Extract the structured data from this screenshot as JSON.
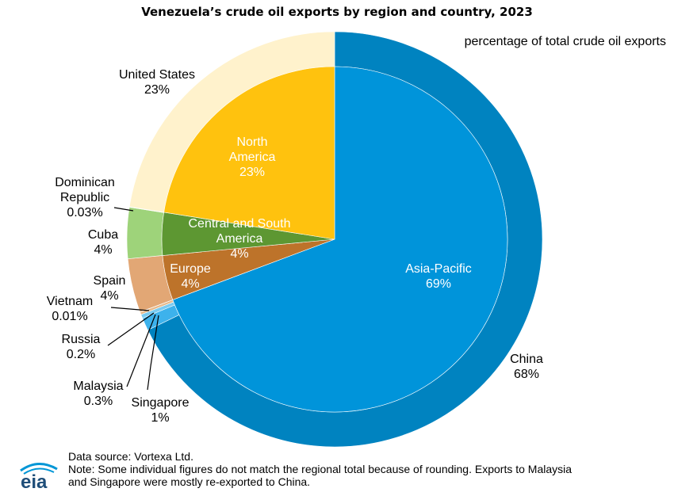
{
  "chart_data": {
    "type": "pie",
    "title": "Venezuela’s crude oil exports by region and country, 2023",
    "subtitle": "percentage of total crude oil exports",
    "inner_ring": {
      "slices": [
        {
          "label_lines": [
            "Asia-Pacific",
            "69%"
          ],
          "value": 69.3,
          "color": "#0094DA"
        },
        {
          "label_lines": [
            "Europe",
            "4%"
          ],
          "value": 4.2,
          "color": "#BD732A"
        },
        {
          "label_lines": [
            "Central and South",
            "America",
            "4%"
          ],
          "value": 4.0,
          "color": "#5D9732"
        },
        {
          "label_lines": [
            "North",
            "America",
            "23%"
          ],
          "value": 22.5,
          "color": "#FFC20E"
        }
      ]
    },
    "outer_ring": {
      "slices": [
        {
          "label_lines": [
            "China",
            "68%"
          ],
          "value": 67.8,
          "color": "#0083C0"
        },
        {
          "label_lines": [
            "Singapore",
            "1%"
          ],
          "value": 1.0,
          "color": "#3DB2EC"
        },
        {
          "label_lines": [
            "Malaysia",
            "0.3%"
          ],
          "value": 0.3,
          "color": "#7ACBF1"
        },
        {
          "label_lines": [
            "Russia",
            "0.2%"
          ],
          "value": 0.2,
          "color": "#E7B98A"
        },
        {
          "label_lines": [
            "Vietnam",
            "0.01%"
          ],
          "value": 0.01,
          "color": "#B3E0F6"
        },
        {
          "label_lines": [
            "Spain",
            "4%"
          ],
          "value": 4.2,
          "color": "#E2A775"
        },
        {
          "label_lines": [
            "Cuba",
            "4%"
          ],
          "value": 3.97,
          "color": "#9ED37A"
        },
        {
          "label_lines": [
            "Dominican",
            "Republic",
            "0.03%"
          ],
          "value": 0.03,
          "color": "#CFE8B9"
        },
        {
          "label_lines": [
            "United States",
            "23%"
          ],
          "value": 22.5,
          "color": "#FFF2CC"
        }
      ]
    }
  },
  "footer": {
    "source": "Data source: Vortexa Ltd.",
    "note_line1": "Note: Some individual figures do not match the regional total because of rounding. Exports to Malaysia",
    "note_line2": "and Singapore were mostly re-exported to China."
  },
  "logo": {
    "text": "eia"
  }
}
